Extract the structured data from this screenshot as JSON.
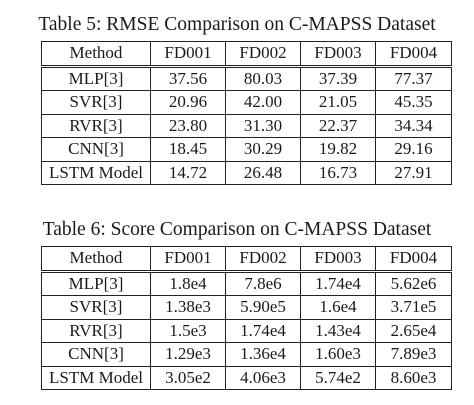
{
  "tables": [
    {
      "caption": "Table 5: RMSE Comparison on C-MAPSS Dataset",
      "headers": [
        "Method",
        "FD001",
        "FD002",
        "FD003",
        "FD004"
      ],
      "rows": [
        [
          "MLP[3]",
          "37.56",
          "80.03",
          "37.39",
          "77.37"
        ],
        [
          "SVR[3]",
          "20.96",
          "42.00",
          "21.05",
          "45.35"
        ],
        [
          "RVR[3]",
          "23.80",
          "31.30",
          "22.37",
          "34.34"
        ],
        [
          "CNN[3]",
          "18.45",
          "30.29",
          "19.82",
          "29.16"
        ],
        [
          "LSTM Model",
          "14.72",
          "26.48",
          "16.73",
          "27.91"
        ]
      ]
    },
    {
      "caption": "Table 6: Score Comparison on C-MAPSS Dataset",
      "headers": [
        "Method",
        "FD001",
        "FD002",
        "FD003",
        "FD004"
      ],
      "rows": [
        [
          "MLP[3]",
          "1.8e4",
          "7.8e6",
          "1.74e4",
          "5.62e6"
        ],
        [
          "SVR[3]",
          "1.38e3",
          "5.90e5",
          "1.6e4",
          "3.71e5"
        ],
        [
          "RVR[3]",
          "1.5e3",
          "1.74e4",
          "1.43e4",
          "2.65e4"
        ],
        [
          "CNN[3]",
          "1.29e3",
          "1.36e4",
          "1.60e3",
          "7.89e3"
        ],
        [
          "LSTM Model",
          "3.05e2",
          "4.06e3",
          "5.74e2",
          "8.60e3"
        ]
      ]
    }
  ]
}
